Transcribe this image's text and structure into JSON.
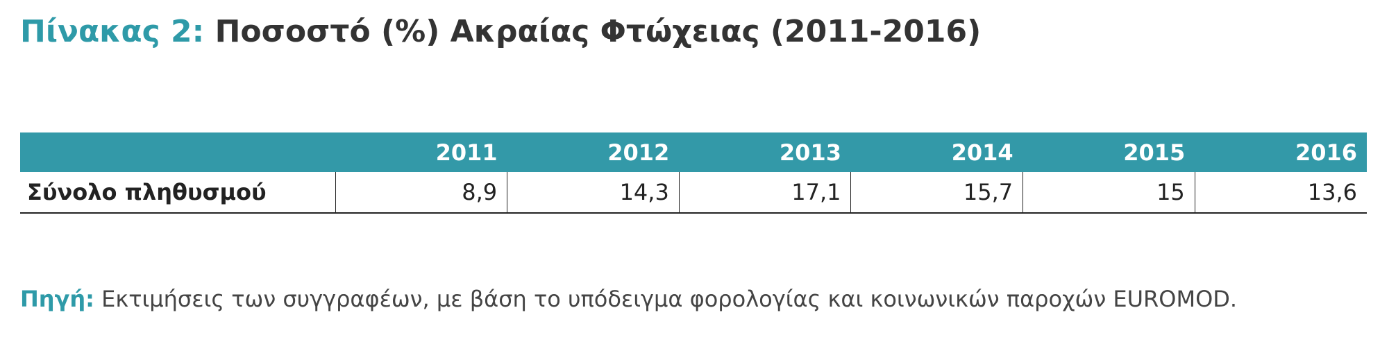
{
  "title": {
    "label": "Πίνακας 2:",
    "text": "Ποσοστό (%) Ακραίας Φτώχειας (2011-2016)"
  },
  "table": {
    "header": [
      "2011",
      "2012",
      "2013",
      "2014",
      "2015",
      "2016"
    ],
    "rows": [
      [
        "Σύνολο πληθυσμού",
        "8,9",
        "14,3",
        "17,1",
        "15,7",
        "15",
        "13,6"
      ]
    ]
  },
  "source": {
    "label": "Πηγή:",
    "text": "Εκτιμήσεις των συγγραφέων, με βάση το υπόδειγμα φορολογίας και κοινωνικών παροχών EUROMOD."
  }
}
